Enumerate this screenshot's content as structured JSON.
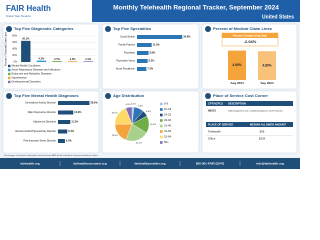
{
  "header": {
    "logo": "FAIR Health",
    "tagline": "Know Your Source",
    "title": "Monthly Telehealth Regional Tracker, September 2024",
    "region": "United States"
  },
  "chart_data": [
    {
      "type": "bar",
      "title": "Top Five Diagnostic Categories",
      "y_label": "Percent of Telehealth Claim Lines",
      "categories": [
        "Mental Health Conditions",
        "Acute Respiratory Diseases and Infections",
        "Endocrine and Metabolic Diseases",
        "Hypertension",
        "Developmental Disorders"
      ],
      "values": [
        65.1,
        4.2,
        2.7,
        2.3,
        2.1
      ],
      "value_labels": [
        "65.1%",
        "4.2%",
        "2.7%",
        "2.3%",
        "2.1%"
      ],
      "colors": [
        "#1f4e79",
        "#2e9bd6",
        "#70ad47",
        "#f4a43a",
        "#7f6fb5"
      ],
      "ylim": [
        0,
        80
      ],
      "yticks": [
        {
          "value": 0,
          "label": "0%"
        },
        {
          "value": 20,
          "label": "20%"
        },
        {
          "value": 40,
          "label": "40%"
        },
        {
          "value": 60,
          "label": "60%"
        },
        {
          "value": 80,
          "label": "80%"
        }
      ]
    },
    {
      "type": "hbar",
      "title": "Top Five Specialties",
      "categories": [
        "Social Worker",
        "Family Practice",
        "Psychiatry",
        "Psychiatric Nurse",
        "Nurse Practitioner"
      ],
      "values": [
        34.8,
        11.3,
        8.9,
        8.2,
        7.2
      ],
      "value_labels": [
        "34.8%",
        "11.3%",
        "8.9%",
        "8.2%",
        "7.2%"
      ],
      "color": "#2e75b6"
    },
    {
      "type": "bar",
      "title": "Percent of Medical Claim Lines",
      "annotation": {
        "label": "Percent Change (Aug-Sep)",
        "value": "-2.04%"
      },
      "categories": [
        "Aug 2024",
        "Sep 2024"
      ],
      "values": [
        4.9,
        4.8
      ],
      "value_labels": [
        "4.90%",
        "4.80%"
      ],
      "colors": [
        "#f4a43a",
        "#f8c27a"
      ]
    },
    {
      "type": "hbar",
      "title": "Top Five Mental Health Diagnoses",
      "categories": [
        "Generalized Anxiety Disorder",
        "Major Depressive Disorder",
        "Adjustment Disorders",
        "Attention-Deficit/Hyperactivity Disorder",
        "Post-traumatic Stress Disorder"
      ],
      "values": [
        28.6,
        13.9,
        11.2,
        8.4,
        6.3
      ],
      "value_labels": [
        "28.6%",
        "13.9%",
        "11.2%",
        "8.4%",
        "6.3%"
      ],
      "color": "#1f4e79"
    },
    {
      "type": "pie",
      "title": "Age Distribution",
      "categories": [
        "0-9",
        "10-18",
        "19-22",
        "23-30",
        "31-40",
        "41-50",
        "51-64",
        "65+"
      ],
      "values": [
        2.0,
        9.4,
        5.8,
        16.5,
        22.1,
        19.0,
        19.2,
        6.0
      ],
      "value_labels": [
        "2.0%",
        "9.4%",
        "5.8%",
        "16.5%",
        "22.1%",
        "19.0%",
        "19.2%",
        "6.0%"
      ],
      "colors": [
        "#9dc3e6",
        "#2e75b6",
        "#1f4e79",
        "#70ad47",
        "#a9d18e",
        "#f4a43a",
        "#ffd966",
        "#7f6fb5"
      ]
    }
  ],
  "table": {
    "title": "Place of Service Cost Corner",
    "code_header": "CPT/HCPCS",
    "desc_header": "DESCRIPTION",
    "code": "99213",
    "description": "Office/outpatient visit, established patient, 20-29 minutes",
    "columns": [
      "PLACE OF SERVICE",
      "MEDIAN ALLOWED AMOUNT"
    ],
    "rows": [
      [
        "Telehealth",
        "$95"
      ],
      [
        "Office",
        "$103"
      ]
    ]
  },
  "footer": {
    "note": "Percentages are based on telehealth claim lines from FAIR Health's database of private healthcare claims.",
    "links": [
      "fairhealth.org",
      "fairhealthconsumer.org",
      "fairhealthprovider.org",
      "855-301-FAIR (3247)",
      "info@fairhealth.org"
    ]
  }
}
